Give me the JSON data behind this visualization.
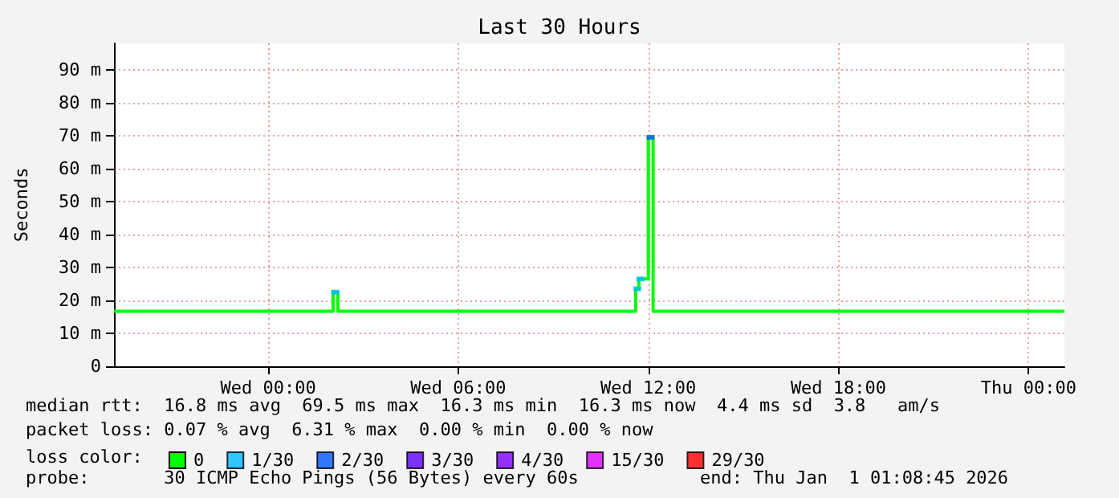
{
  "chart_data": {
    "type": "step",
    "title": "Last 30 Hours",
    "ylabel": "Seconds",
    "legend_title": "loss color:",
    "annotations": [
      "median rtt:  16.8 ms avg  69.5 ms max  16.3 ms min  16.3 ms now  4.4 ms sd  3.8   am/s",
      "packet loss: 0.07 % avg  6.31 % max  0.00 % min  0.00 % now",
      "probe:       30 ICMP Echo Pings (56 Bytes) every 60s",
      "end: Thu Jan  1 01:08:45 2026"
    ],
    "xlim": [
      "2025-12-30T19:08",
      "2026-01-01T01:08"
    ],
    "xticks": [
      {
        "value": "2025-12-31T00:00",
        "label": "Wed 00:00"
      },
      {
        "value": "2025-12-31T06:00",
        "label": "Wed 06:00"
      },
      {
        "value": "2025-12-31T12:00",
        "label": "Wed 12:00"
      },
      {
        "value": "2025-12-31T18:00",
        "label": "Wed 18:00"
      },
      {
        "value": "2026-01-01T00:00",
        "label": "Thu 00:00"
      }
    ],
    "ylim": [
      0,
      98
    ],
    "yticks": [
      0,
      {
        "value": 10,
        "label": "10 m"
      },
      {
        "value": 20,
        "label": "20 m"
      },
      {
        "value": 30,
        "label": "30 m"
      },
      {
        "value": 40,
        "label": "40 m"
      },
      {
        "value": 50,
        "label": "50 m"
      },
      {
        "value": 60,
        "label": "60 m"
      },
      {
        "value": 70,
        "label": "70 m"
      },
      {
        "value": 80,
        "label": "80 m"
      },
      {
        "value": 90,
        "label": "90 m"
      }
    ],
    "grid": true,
    "legend": "bottom",
    "series": [
      {
        "name": "0",
        "color": "#00ff00",
        "x": [
          "2025-12-30T19:08",
          "2025-12-31T02:03",
          "2025-12-31T02:12",
          "2025-12-31T11:36",
          "2025-12-31T11:42",
          "2025-12-31T12:00",
          "2025-12-31T12:09",
          "2026-01-01T01:08"
        ],
        "values": [
          16.7,
          22.5,
          16.7,
          23.5,
          26.5,
          69.5,
          16.7,
          16.7
        ]
      },
      {
        "name": "1/30",
        "type": "scatter",
        "color": "#00b8ff",
        "x": [
          "2025-12-31T02:07",
          "2025-12-31T11:39",
          "2025-12-31T11:45"
        ],
        "values": [
          22.5,
          23.5,
          26.5
        ]
      },
      {
        "name": "2/30",
        "type": "scatter",
        "color": "#0059ff",
        "x": [
          "2025-12-31T12:04"
        ],
        "values": [
          69.5
        ]
      },
      {
        "name": "3/30",
        "type": "scatter",
        "color": "#5e00ff"
      },
      {
        "name": "4/30",
        "type": "scatter",
        "color": "#7e00ff"
      },
      {
        "name": "15/30",
        "type": "scatter",
        "color": "#dd00ff"
      },
      {
        "name": "29/30",
        "type": "scatter",
        "color": "#ff0000"
      }
    ]
  }
}
